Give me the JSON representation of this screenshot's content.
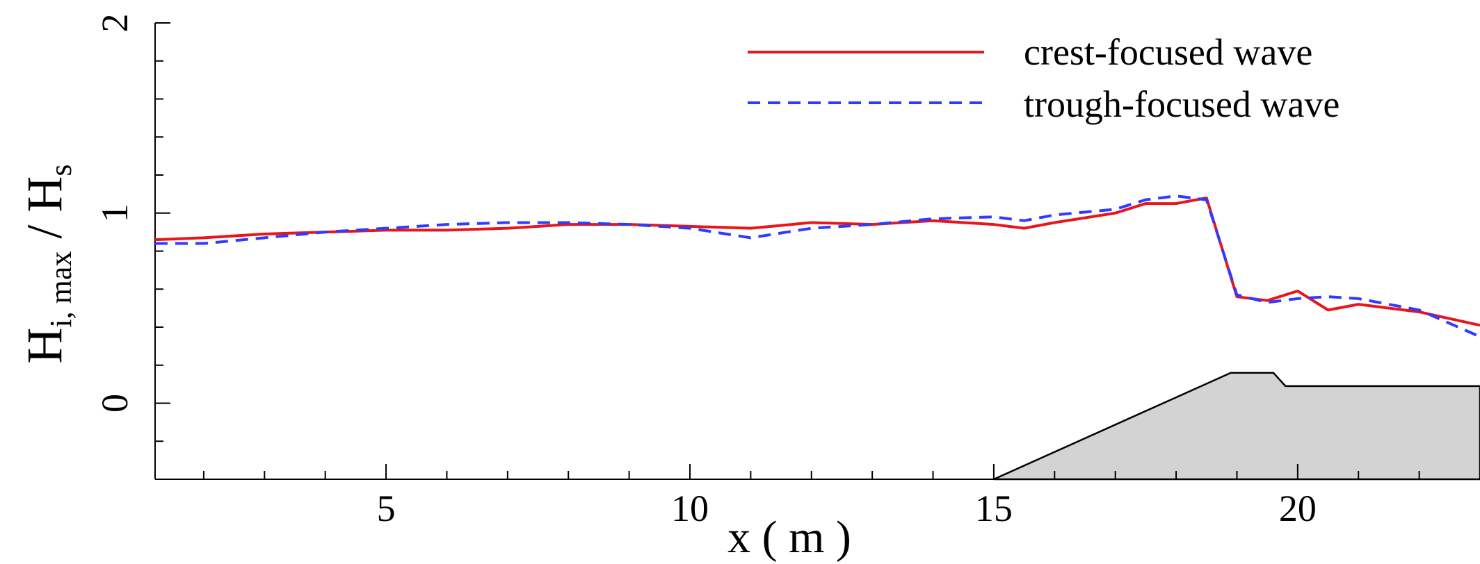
{
  "chart_data": {
    "type": "line",
    "xlabel": "x ( m )",
    "ylabel": {
      "base": "H",
      "sub": "i, max",
      "sep": " / ",
      "base2": "H",
      "sub2": "s"
    },
    "xlim": [
      1.2,
      23
    ],
    "ylim": [
      -0.4,
      2
    ],
    "x_ticks": [
      5,
      10,
      15,
      20
    ],
    "x_tick_labels": [
      "5",
      "10",
      "15",
      "20"
    ],
    "y_ticks": [
      0,
      1,
      2
    ],
    "y_tick_labels": [
      "0",
      "1",
      "2"
    ],
    "legend_position": "top-right",
    "series": [
      {
        "name": "crest-focused wave",
        "color": "#e8151b",
        "style": "solid",
        "x": [
          1.2,
          2,
          3,
          4,
          5,
          6,
          7,
          8,
          9,
          10,
          11,
          12,
          13,
          14,
          15,
          15.5,
          16,
          17,
          17.5,
          18,
          18.5,
          19,
          19.5,
          20,
          20.5,
          21,
          22,
          23
        ],
        "y": [
          0.86,
          0.87,
          0.89,
          0.9,
          0.91,
          0.91,
          0.92,
          0.94,
          0.94,
          0.93,
          0.92,
          0.95,
          0.94,
          0.96,
          0.94,
          0.92,
          0.95,
          1.0,
          1.05,
          1.05,
          1.08,
          0.56,
          0.54,
          0.59,
          0.49,
          0.52,
          0.48,
          0.41
        ]
      },
      {
        "name": "trough-focused wave",
        "color": "#2f3cff",
        "style": "dashed",
        "x": [
          1.2,
          2,
          3,
          4,
          5,
          6,
          7,
          8,
          9,
          10,
          11,
          12,
          13,
          14,
          15,
          15.5,
          16,
          17,
          17.5,
          18,
          18.5,
          19,
          19.5,
          20,
          20.5,
          21,
          22,
          23
        ],
        "y": [
          0.84,
          0.84,
          0.87,
          0.9,
          0.92,
          0.94,
          0.95,
          0.95,
          0.94,
          0.92,
          0.87,
          0.92,
          0.94,
          0.97,
          0.98,
          0.96,
          0.99,
          1.02,
          1.07,
          1.09,
          1.07,
          0.57,
          0.53,
          0.55,
          0.56,
          0.55,
          0.49,
          0.35
        ]
      }
    ],
    "bathymetry": {
      "fill": "#d3d3d3",
      "x": [
        15,
        18.9,
        19.6,
        19.8,
        23
      ],
      "y": [
        -0.4,
        0.16,
        0.16,
        0.09,
        0.09
      ]
    }
  }
}
